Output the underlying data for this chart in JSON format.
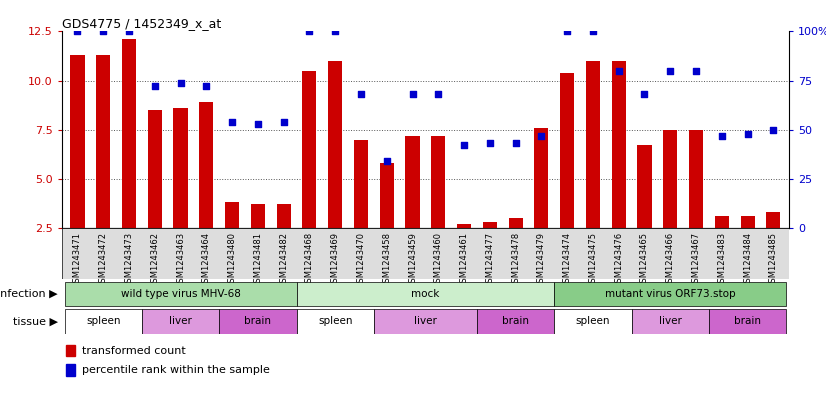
{
  "title": "GDS4775 / 1452349_x_at",
  "samples": [
    "GSM1243471",
    "GSM1243472",
    "GSM1243473",
    "GSM1243462",
    "GSM1243463",
    "GSM1243464",
    "GSM1243480",
    "GSM1243481",
    "GSM1243482",
    "GSM1243468",
    "GSM1243469",
    "GSM1243470",
    "GSM1243458",
    "GSM1243459",
    "GSM1243460",
    "GSM1243461",
    "GSM1243477",
    "GSM1243478",
    "GSM1243479",
    "GSM1243474",
    "GSM1243475",
    "GSM1243476",
    "GSM1243465",
    "GSM1243466",
    "GSM1243467",
    "GSM1243483",
    "GSM1243484",
    "GSM1243485"
  ],
  "bar_values": [
    11.3,
    11.3,
    12.1,
    8.5,
    8.6,
    8.9,
    3.8,
    3.7,
    3.7,
    10.5,
    11.0,
    7.0,
    5.8,
    7.2,
    7.2,
    2.7,
    2.8,
    3.0,
    7.6,
    10.4,
    11.0,
    11.0,
    6.7,
    7.5,
    7.5,
    3.1,
    3.1,
    3.3
  ],
  "percentile_values": [
    100,
    100,
    100,
    72,
    74,
    72,
    54,
    53,
    54,
    100,
    100,
    68,
    34,
    68,
    68,
    42,
    43,
    43,
    47,
    100,
    100,
    80,
    68,
    80,
    80,
    47,
    48,
    50
  ],
  "bar_color": "#cc0000",
  "dot_color": "#0000cc",
  "ylim_left": [
    2.5,
    12.5
  ],
  "ylim_right": [
    0,
    100
  ],
  "yticks_left": [
    2.5,
    5.0,
    7.5,
    10.0,
    12.5
  ],
  "yticks_right": [
    0,
    25,
    50,
    75,
    100
  ],
  "infection_groups": [
    {
      "label": "wild type virus MHV-68",
      "start": 0,
      "end": 9,
      "color": "#aaddaa"
    },
    {
      "label": "mock",
      "start": 9,
      "end": 19,
      "color": "#cceecc"
    },
    {
      "label": "mutant virus ORF73.stop",
      "start": 19,
      "end": 28,
      "color": "#88cc88"
    }
  ],
  "tissue_groups": [
    {
      "label": "spleen",
      "start": 0,
      "end": 3,
      "color": "#ffffff"
    },
    {
      "label": "liver",
      "start": 3,
      "end": 6,
      "color": "#dd88dd"
    },
    {
      "label": "brain",
      "start": 6,
      "end": 9,
      "color": "#cc66cc"
    },
    {
      "label": "spleen",
      "start": 9,
      "end": 12,
      "color": "#ffffff"
    },
    {
      "label": "liver",
      "start": 12,
      "end": 16,
      "color": "#dd88dd"
    },
    {
      "label": "brain",
      "start": 16,
      "end": 19,
      "color": "#cc66cc"
    },
    {
      "label": "spleen",
      "start": 19,
      "end": 22,
      "color": "#ffffff"
    },
    {
      "label": "liver",
      "start": 22,
      "end": 25,
      "color": "#dd88dd"
    },
    {
      "label": "brain",
      "start": 25,
      "end": 28,
      "color": "#cc66cc"
    }
  ],
  "infection_label": "infection",
  "tissue_label": "tissue",
  "legend_transformed": "transformed count",
  "legend_percentile": "percentile rank within the sample",
  "bar_width": 0.55,
  "background_color": "#ffffff",
  "tick_label_color_left": "#cc0000",
  "tick_label_color_right": "#0000cc",
  "dotted_line_color": "#555555",
  "xtick_bg_color": "#dddddd",
  "infection_green_light": "#bbeeaa",
  "infection_green_mid": "#aaddaa",
  "infection_green_dark": "#99cc88"
}
